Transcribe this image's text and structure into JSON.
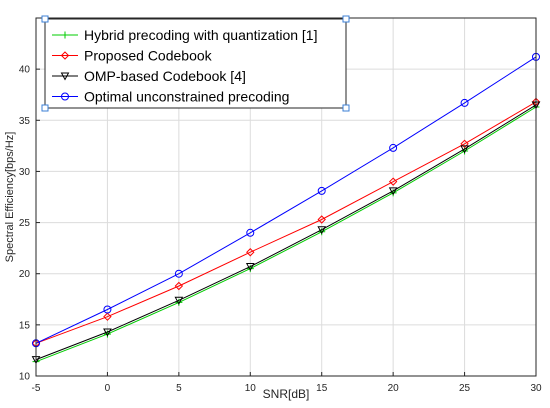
{
  "chart_data": {
    "type": "line",
    "title": "",
    "xlabel": "SNR[dB]",
    "ylabel": "Spectral Efficiency[bps/Hz]",
    "xlim": [
      -5,
      30
    ],
    "ylim": [
      10,
      45
    ],
    "xticks": [
      -5,
      0,
      5,
      10,
      15,
      20,
      25,
      30
    ],
    "yticks": [
      10,
      15,
      20,
      25,
      30,
      35,
      40
    ],
    "grid": true,
    "legend_position": "top-left",
    "x": [
      -5,
      0,
      5,
      10,
      15,
      20,
      25,
      30
    ],
    "series": [
      {
        "name": "Hybrid precoding with quantization [1]",
        "color": "#00cc00",
        "marker": "plus",
        "values": [
          11.4,
          14.1,
          17.2,
          20.5,
          24.1,
          27.9,
          32.0,
          36.3
        ]
      },
      {
        "name": "Proposed Codebook",
        "color": "#ff0000",
        "marker": "diamond",
        "values": [
          13.2,
          15.8,
          18.8,
          22.1,
          25.3,
          29.0,
          32.7,
          36.8
        ]
      },
      {
        "name": "OMP-based Codebook [4]",
        "color": "#000000",
        "marker": "triangle-down",
        "values": [
          11.6,
          14.3,
          17.4,
          20.7,
          24.3,
          28.1,
          32.2,
          36.5
        ]
      },
      {
        "name": "Optimal unconstrained precoding",
        "color": "#0000ff",
        "marker": "circle",
        "values": [
          13.2,
          16.5,
          20.0,
          24.0,
          28.1,
          32.3,
          36.7,
          41.2
        ]
      }
    ]
  }
}
